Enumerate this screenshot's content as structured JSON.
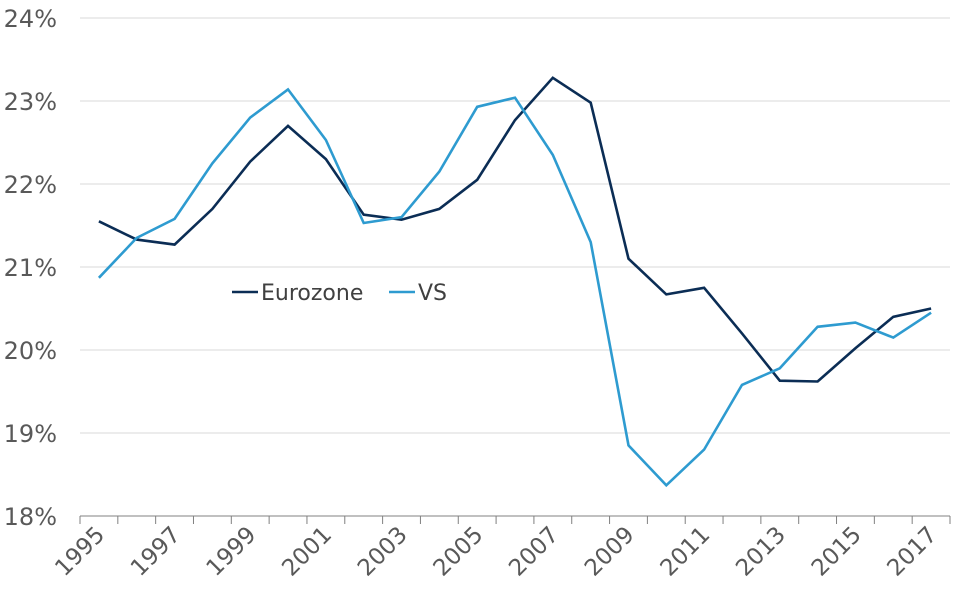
{
  "chart_data": {
    "type": "line",
    "title": "",
    "xlabel": "",
    "ylabel": "",
    "x": [
      "1995",
      "1996",
      "1997",
      "1998",
      "1999",
      "2000",
      "2001",
      "2002",
      "2003",
      "2004",
      "2005",
      "2006",
      "2007",
      "2008",
      "2009",
      "2010",
      "2011",
      "2012",
      "2013",
      "2014",
      "2015",
      "2016",
      "2017"
    ],
    "x_tick_labels": [
      "1995",
      "1997",
      "1999",
      "2001",
      "2003",
      "2005",
      "2007",
      "2009",
      "2011",
      "2013",
      "2015",
      "2017"
    ],
    "y_tick_labels": [
      "18%",
      "19%",
      "20%",
      "21%",
      "22%",
      "23%",
      "24%"
    ],
    "ylim": [
      18,
      24
    ],
    "grid": true,
    "legend_position": "middle-left",
    "series": [
      {
        "name": "Eurozone",
        "color": "#0b2d55",
        "values": [
          21.55,
          21.33,
          21.27,
          21.7,
          22.27,
          22.7,
          22.3,
          21.63,
          21.57,
          21.7,
          22.05,
          22.77,
          23.28,
          22.98,
          21.1,
          20.67,
          20.75,
          20.2,
          19.63,
          19.62,
          20.02,
          20.4,
          20.5
        ]
      },
      {
        "name": "VS",
        "color": "#2e9bd0",
        "values": [
          20.87,
          21.35,
          21.58,
          22.25,
          22.8,
          23.14,
          22.53,
          21.53,
          21.6,
          22.15,
          22.93,
          23.04,
          22.35,
          21.3,
          18.85,
          18.37,
          18.8,
          19.58,
          19.78,
          20.28,
          20.33,
          20.15,
          20.45
        ]
      }
    ]
  }
}
